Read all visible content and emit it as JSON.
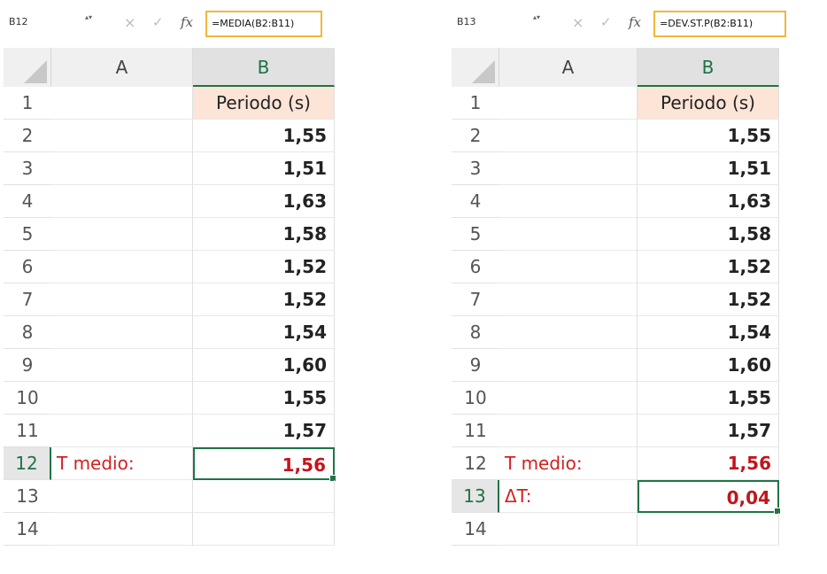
{
  "left": {
    "name_box": "B12",
    "formula": "=MEDIA(B2:B11)",
    "columns": [
      "A",
      "B"
    ],
    "rows": [
      {
        "num": "1",
        "a": "",
        "b": "Periodo (s)"
      },
      {
        "num": "2",
        "a": "",
        "b": "1,55"
      },
      {
        "num": "3",
        "a": "",
        "b": "1,51"
      },
      {
        "num": "4",
        "a": "",
        "b": "1,63"
      },
      {
        "num": "5",
        "a": "",
        "b": "1,58"
      },
      {
        "num": "6",
        "a": "",
        "b": "1,52"
      },
      {
        "num": "7",
        "a": "",
        "b": "1,52"
      },
      {
        "num": "8",
        "a": "",
        "b": "1,54"
      },
      {
        "num": "9",
        "a": "",
        "b": "1,60"
      },
      {
        "num": "10",
        "a": "",
        "b": "1,55"
      },
      {
        "num": "11",
        "a": "",
        "b": "1,57"
      },
      {
        "num": "12",
        "a": "T medio:",
        "b": "1,56"
      },
      {
        "num": "13",
        "a": "",
        "b": ""
      },
      {
        "num": "14",
        "a": "",
        "b": ""
      }
    ]
  },
  "right": {
    "name_box": "B13",
    "formula": "=DEV.ST.P(B2:B11)",
    "columns": [
      "A",
      "B"
    ],
    "rows": [
      {
        "num": "1",
        "a": "",
        "b": "Periodo (s)"
      },
      {
        "num": "2",
        "a": "",
        "b": "1,55"
      },
      {
        "num": "3",
        "a": "",
        "b": "1,51"
      },
      {
        "num": "4",
        "a": "",
        "b": "1,63"
      },
      {
        "num": "5",
        "a": "",
        "b": "1,58"
      },
      {
        "num": "6",
        "a": "",
        "b": "1,52"
      },
      {
        "num": "7",
        "a": "",
        "b": "1,52"
      },
      {
        "num": "8",
        "a": "",
        "b": "1,54"
      },
      {
        "num": "9",
        "a": "",
        "b": "1,60"
      },
      {
        "num": "10",
        "a": "",
        "b": "1,55"
      },
      {
        "num": "11",
        "a": "",
        "b": "1,57"
      },
      {
        "num": "12",
        "a": "T medio:",
        "b": "1,56"
      },
      {
        "num": "13",
        "a": "ΔT:",
        "b": "0,04"
      },
      {
        "num": "14",
        "a": "",
        "b": ""
      }
    ]
  },
  "icons": {
    "spinner": "spinner-icon",
    "cancel": "cancel-x-icon",
    "enter": "check-icon",
    "function": "fx-icon"
  },
  "glyphs": {
    "spinner": "▴▾",
    "cancel": "×",
    "enter": "✓",
    "function": "fx"
  },
  "colors": {
    "formula_highlight": "#f0b83a",
    "header_fill": "#fce4d6",
    "label_red": "#d32020",
    "selection_green": "#217346"
  }
}
